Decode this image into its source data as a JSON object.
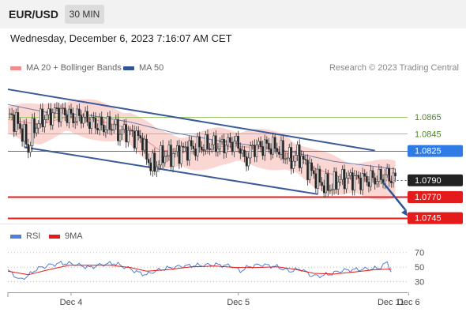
{
  "header": {
    "pair": "EUR/USD",
    "timeframe": "30 MIN",
    "datetime": "Wednesday, December 6, 2023 7:16:07 AM CET"
  },
  "legend": {
    "ma20_label": "MA 20 + Bollinger Bands",
    "ma50_label": "MA 50",
    "research": "Research © 2023 Trading Central"
  },
  "rsi_legend": {
    "rsi_label": "RSI",
    "ma_label": "9MA"
  },
  "colors": {
    "ma20": "#f28b8b",
    "bollinger": "#f9c9c6",
    "ma50": "#2f5597",
    "channel": "#3a5a9a",
    "resistance": "#9bc96b",
    "pivot": "#2f7be6",
    "support": "#e31b1b",
    "current": "#222222",
    "rsi": "#4f7fd6",
    "rsi_ma": "#e31b1b"
  },
  "chart_data": [
    {
      "type": "candlestick",
      "title": "EUR/USD 30 MIN",
      "x_tick_labels": [
        "Dec 4",
        "Dec 5",
        "Dec 6",
        "Dec 11"
      ],
      "ylim": [
        1.0738,
        1.0915
      ],
      "levels": [
        {
          "label": "1.0865",
          "value": 1.0865,
          "kind": "resistance"
        },
        {
          "label": "1.0845",
          "value": 1.0845,
          "kind": "resistance"
        },
        {
          "label": "1.0825",
          "value": 1.0825,
          "kind": "pivot"
        },
        {
          "label": "1.0790",
          "value": 1.079,
          "kind": "current"
        },
        {
          "label": "1.0770",
          "value": 1.077,
          "kind": "support"
        },
        {
          "label": "1.0745",
          "value": 1.0745,
          "kind": "support"
        }
      ],
      "close_path": [
        [
          0,
          1.0868
        ],
        [
          4,
          1.086
        ],
        [
          8,
          1.0843
        ],
        [
          10,
          1.0826
        ],
        [
          12,
          1.0849
        ],
        [
          16,
          1.0862
        ],
        [
          20,
          1.0866
        ],
        [
          24,
          1.0872
        ],
        [
          28,
          1.0869
        ],
        [
          32,
          1.0864
        ],
        [
          36,
          1.0866
        ],
        [
          40,
          1.086
        ],
        [
          44,
          1.0856
        ],
        [
          48,
          1.0853
        ],
        [
          52,
          1.0856
        ],
        [
          54,
          1.0846
        ],
        [
          58,
          1.0848
        ],
        [
          62,
          1.0842
        ],
        [
          66,
          1.0838
        ],
        [
          68,
          1.0815
        ],
        [
          72,
          1.0805
        ],
        [
          76,
          1.082
        ],
        [
          80,
          1.0819
        ],
        [
          84,
          1.0824
        ],
        [
          88,
          1.0827
        ],
        [
          92,
          1.0829
        ],
        [
          96,
          1.0831
        ],
        [
          100,
          1.0832
        ],
        [
          104,
          1.0831
        ],
        [
          108,
          1.0833
        ],
        [
          112,
          1.0834
        ],
        [
          114,
          1.0829
        ],
        [
          116,
          1.0811
        ],
        [
          118,
          1.0819
        ],
        [
          120,
          1.0828
        ],
        [
          124,
          1.083
        ],
        [
          128,
          1.083
        ],
        [
          132,
          1.0828
        ],
        [
          136,
          1.0819
        ],
        [
          140,
          1.0813
        ],
        [
          142,
          1.0822
        ],
        [
          146,
          1.0808
        ],
        [
          150,
          1.0796
        ],
        [
          154,
          1.0785
        ],
        [
          158,
          1.0781
        ],
        [
          162,
          1.079
        ],
        [
          166,
          1.0792
        ],
        [
          170,
          1.0791
        ],
        [
          174,
          1.079
        ],
        [
          178,
          1.0791
        ],
        [
          182,
          1.0792
        ],
        [
          186,
          1.0795
        ],
        [
          188,
          1.0793
        ],
        [
          190,
          1.079
        ]
      ],
      "ma20": [
        [
          0,
          1.0862
        ],
        [
          16,
          1.0856
        ],
        [
          30,
          1.0866
        ],
        [
          44,
          1.0861
        ],
        [
          60,
          1.0851
        ],
        [
          74,
          1.0826
        ],
        [
          90,
          1.0822
        ],
        [
          104,
          1.083
        ],
        [
          120,
          1.0829
        ],
        [
          136,
          1.0823
        ],
        [
          150,
          1.0804
        ],
        [
          164,
          1.0793
        ],
        [
          178,
          1.079
        ],
        [
          190,
          1.0791
        ]
      ],
      "ma50": [
        [
          0,
          1.088
        ],
        [
          20,
          1.087
        ],
        [
          40,
          1.0867
        ],
        [
          60,
          1.0859
        ],
        [
          80,
          1.0847
        ],
        [
          100,
          1.0838
        ],
        [
          120,
          1.0831
        ],
        [
          140,
          1.0823
        ],
        [
          160,
          1.0812
        ],
        [
          180,
          1.0806
        ],
        [
          190,
          1.0803
        ]
      ],
      "channel": [
        {
          "name": "upper",
          "from": [
            0,
            1.0898
          ],
          "to": [
            180,
            1.0825
          ]
        },
        {
          "name": "lower",
          "from": [
            8,
            1.0829
          ],
          "to": [
            152,
            1.0773
          ]
        }
      ],
      "projection": {
        "from": [
          184,
          1.0787
        ],
        "to": [
          196,
          1.0747
        ]
      }
    },
    {
      "type": "line",
      "title": "RSI",
      "ylim": [
        15,
        80
      ],
      "y_ticks": [
        70,
        50,
        30
      ],
      "rsi": [
        [
          0,
          45
        ],
        [
          6,
          32
        ],
        [
          10,
          38
        ],
        [
          14,
          47
        ],
        [
          20,
          52
        ],
        [
          26,
          55
        ],
        [
          32,
          54
        ],
        [
          40,
          49
        ],
        [
          46,
          53
        ],
        [
          52,
          55
        ],
        [
          56,
          51
        ],
        [
          60,
          47
        ],
        [
          64,
          42
        ],
        [
          68,
          39
        ],
        [
          72,
          44
        ],
        [
          78,
          48
        ],
        [
          86,
          51
        ],
        [
          94,
          52
        ],
        [
          102,
          53
        ],
        [
          110,
          51
        ],
        [
          114,
          44
        ],
        [
          118,
          50
        ],
        [
          124,
          53
        ],
        [
          132,
          50
        ],
        [
          138,
          44
        ],
        [
          144,
          47
        ],
        [
          148,
          39
        ],
        [
          152,
          37
        ],
        [
          158,
          40
        ],
        [
          164,
          45
        ],
        [
          170,
          46
        ],
        [
          176,
          47
        ],
        [
          182,
          48
        ],
        [
          186,
          56
        ],
        [
          188,
          44
        ]
      ],
      "rsi_ma": [
        [
          0,
          44
        ],
        [
          10,
          39
        ],
        [
          20,
          46
        ],
        [
          30,
          52
        ],
        [
          40,
          52
        ],
        [
          50,
          52
        ],
        [
          60,
          49
        ],
        [
          68,
          44
        ],
        [
          78,
          46
        ],
        [
          90,
          50
        ],
        [
          102,
          51
        ],
        [
          112,
          49
        ],
        [
          122,
          49
        ],
        [
          132,
          50
        ],
        [
          140,
          47
        ],
        [
          150,
          41
        ],
        [
          160,
          40
        ],
        [
          170,
          43
        ],
        [
          180,
          46
        ],
        [
          188,
          47
        ]
      ]
    }
  ]
}
